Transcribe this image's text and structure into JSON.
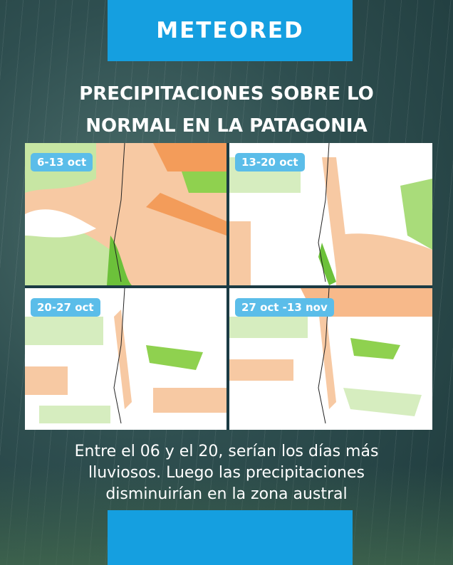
{
  "brand": {
    "logo_text": "METEORED",
    "color": "#159fe0"
  },
  "title": {
    "line1": "PRECIPITACIONES SOBRE LO",
    "line2": "NORMAL EN LA PATAGONIA"
  },
  "maps": [
    {
      "label": "6-13 oct"
    },
    {
      "label": "13-20 oct"
    },
    {
      "label": "20-27 oct"
    },
    {
      "label": "27 oct -13 nov"
    }
  ],
  "legend_colors": {
    "above_normal": "#8fd14f",
    "below_normal": "#f7b98a",
    "strong_below": "#f39c5a",
    "label_bg": "#5bbde9"
  },
  "caption": {
    "line1": "Entre el 06 y el 20, serían los días más",
    "line2": "lluviosos. Luego las precipitaciones",
    "line3": "disminuirían en la zona austral"
  }
}
